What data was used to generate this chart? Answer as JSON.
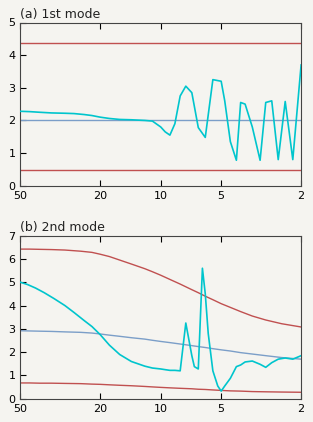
{
  "panel_a": {
    "title": "(a) 1st mode",
    "ylim": [
      0.0,
      5.0
    ],
    "yticks": [
      0.0,
      1.0,
      2.0,
      3.0,
      4.0,
      5.0
    ],
    "hline_red1": 0.48,
    "hline_red2": 4.38,
    "hline_blue": 2.0,
    "spectrum_x": [
      50,
      45,
      40,
      35,
      30,
      27,
      24,
      22,
      20,
      18,
      16,
      14,
      13,
      12,
      11,
      10,
      9.5,
      9,
      8.5,
      8,
      7.5,
      7,
      6.5,
      6,
      5.5,
      5,
      4.8,
      4.5,
      4.2,
      4,
      3.8,
      3.5,
      3.2,
      3,
      2.8,
      2.6,
      2.4,
      2.2,
      2.0
    ],
    "spectrum_y": [
      2.28,
      2.27,
      2.25,
      2.23,
      2.22,
      2.21,
      2.18,
      2.15,
      2.1,
      2.06,
      2.03,
      2.02,
      2.01,
      2.0,
      1.98,
      1.8,
      1.65,
      1.55,
      1.9,
      2.75,
      3.05,
      2.85,
      1.78,
      1.48,
      3.25,
      3.2,
      2.6,
      1.35,
      0.78,
      2.55,
      2.5,
      1.8,
      0.78,
      2.55,
      2.6,
      0.8,
      2.58,
      0.8,
      3.7
    ]
  },
  "panel_b": {
    "title": "(b) 2nd mode",
    "ylim": [
      0.0,
      7.0
    ],
    "yticks": [
      0.0,
      1.0,
      2.0,
      3.0,
      4.0,
      5.0,
      6.0,
      7.0
    ],
    "red_upper_x": [
      50,
      45,
      40,
      35,
      30,
      25,
      22,
      20,
      18,
      16,
      14,
      12,
      11,
      10,
      9,
      8,
      7,
      6.5,
      6,
      5.5,
      5,
      4.5,
      4,
      3.5,
      3,
      2.5,
      2
    ],
    "red_upper_y": [
      6.42,
      6.42,
      6.41,
      6.4,
      6.38,
      6.33,
      6.28,
      6.2,
      6.1,
      5.95,
      5.78,
      5.58,
      5.45,
      5.3,
      5.12,
      4.92,
      4.68,
      4.55,
      4.4,
      4.25,
      4.08,
      3.92,
      3.74,
      3.55,
      3.38,
      3.22,
      3.08
    ],
    "red_lower_x": [
      50,
      45,
      40,
      35,
      30,
      25,
      22,
      20,
      18,
      16,
      14,
      12,
      11,
      10,
      9,
      8,
      7,
      6.5,
      6,
      5.5,
      5,
      4.5,
      4,
      3.5,
      3,
      2.5,
      2
    ],
    "red_lower_y": [
      0.68,
      0.68,
      0.67,
      0.67,
      0.66,
      0.65,
      0.63,
      0.62,
      0.6,
      0.58,
      0.56,
      0.53,
      0.51,
      0.49,
      0.47,
      0.45,
      0.43,
      0.41,
      0.4,
      0.38,
      0.36,
      0.34,
      0.33,
      0.31,
      0.3,
      0.29,
      0.28
    ],
    "blue_x": [
      50,
      45,
      40,
      35,
      30,
      25,
      22,
      20,
      18,
      16,
      14,
      12,
      11,
      10,
      9,
      8,
      7,
      6.5,
      6,
      5.5,
      5,
      4.5,
      4,
      3.5,
      3,
      2.5,
      2
    ],
    "blue_y": [
      2.92,
      2.91,
      2.9,
      2.89,
      2.87,
      2.85,
      2.82,
      2.78,
      2.73,
      2.68,
      2.62,
      2.56,
      2.51,
      2.46,
      2.41,
      2.35,
      2.28,
      2.24,
      2.2,
      2.15,
      2.1,
      2.05,
      1.98,
      1.92,
      1.85,
      1.77,
      1.7
    ],
    "spectrum_x": [
      50,
      46,
      42,
      38,
      34,
      30,
      27,
      24,
      22,
      20,
      18,
      16,
      14,
      12,
      11,
      10,
      9.5,
      9,
      8.5,
      8,
      7.5,
      7,
      6.8,
      6.5,
      6.2,
      6,
      5.8,
      5.5,
      5.2,
      5,
      4.8,
      4.5,
      4.2,
      4,
      3.8,
      3.5,
      3.2,
      3,
      2.8,
      2.6,
      2.4,
      2.2,
      2.0
    ],
    "spectrum_y": [
      5.0,
      4.9,
      4.75,
      4.55,
      4.3,
      4.0,
      3.7,
      3.35,
      3.1,
      2.75,
      2.3,
      1.9,
      1.6,
      1.4,
      1.32,
      1.28,
      1.25,
      1.22,
      1.22,
      1.2,
      3.25,
      1.85,
      1.38,
      1.28,
      5.6,
      4.5,
      2.8,
      1.2,
      0.55,
      0.33,
      0.55,
      0.88,
      1.38,
      1.45,
      1.58,
      1.62,
      1.48,
      1.35,
      1.55,
      1.7,
      1.75,
      1.7,
      1.85
    ]
  },
  "xticks": [
    50,
    20,
    10,
    5,
    2
  ],
  "xtick_labels": [
    "50",
    "20",
    "10",
    "5",
    "2"
  ],
  "cyan_color": "#00C5CD",
  "red_color": "#C05050",
  "blue_color": "#7B9EC8",
  "bg_color": "#F5F4F0",
  "spine_color": "#444444",
  "title_fontsize": 9,
  "tick_fontsize": 8
}
